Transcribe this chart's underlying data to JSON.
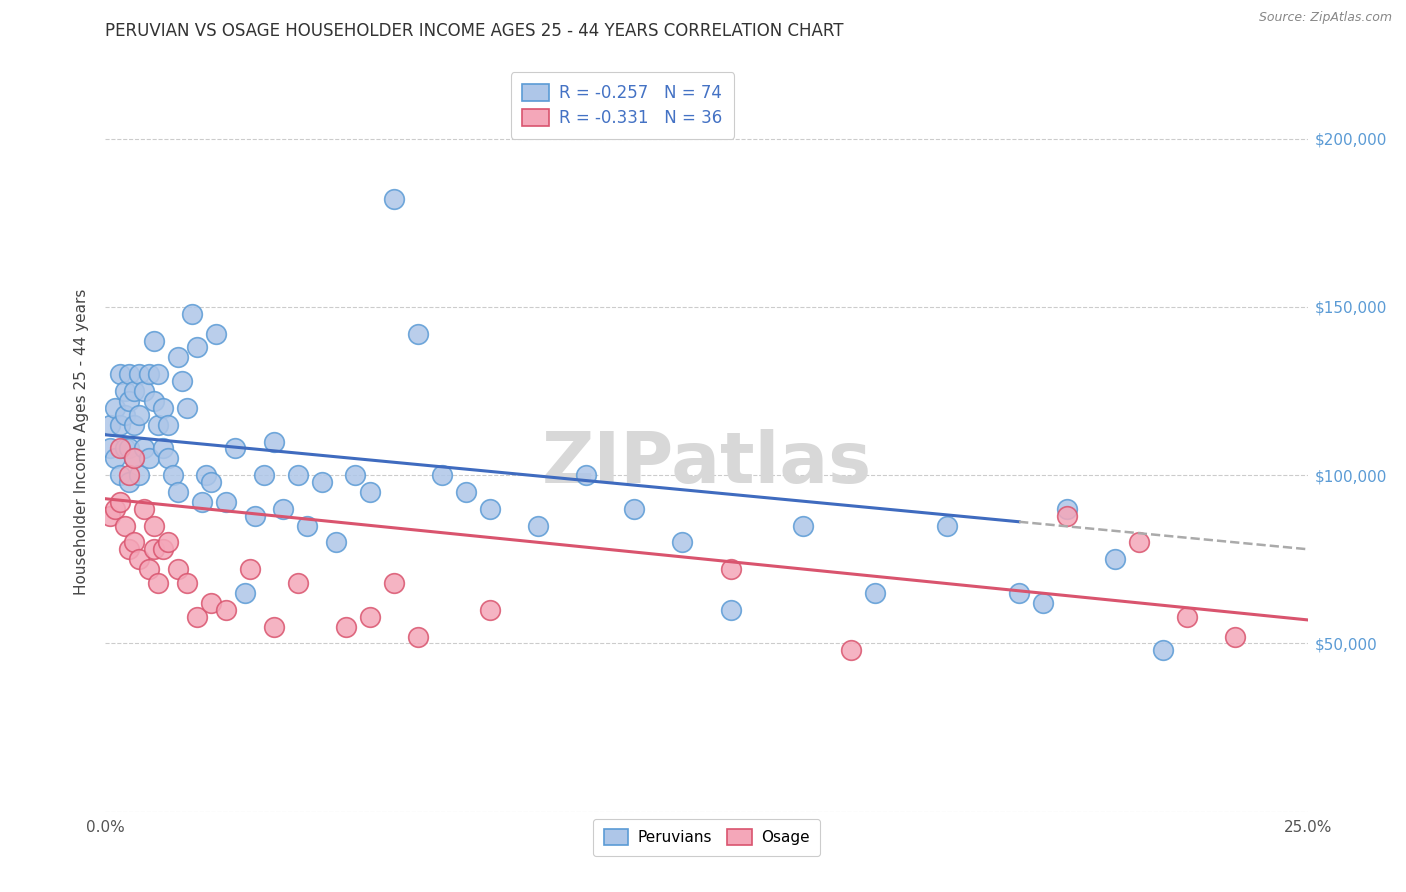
{
  "title": "PERUVIAN VS OSAGE HOUSEHOLDER INCOME AGES 25 - 44 YEARS CORRELATION CHART",
  "source": "Source: ZipAtlas.com",
  "ylabel": "Householder Income Ages 25 - 44 years",
  "xlim": [
    0.0,
    0.25
  ],
  "ylim": [
    0,
    220000
  ],
  "yticks": [
    0,
    50000,
    100000,
    150000,
    200000
  ],
  "xticks": [
    0.0,
    0.05,
    0.1,
    0.15,
    0.2,
    0.25
  ],
  "xtick_labels": [
    "0.0%",
    "",
    "",
    "",
    "",
    "25.0%"
  ],
  "grid_color": "#cccccc",
  "background_color": "#ffffff",
  "peruvian_color": "#aec6e8",
  "peruvian_edge": "#5b9bd5",
  "osage_color": "#f4a7b9",
  "osage_edge": "#d9546e",
  "trend_peruvian_color": "#3f6bbf",
  "trend_osage_color": "#d9546e",
  "trend_dashed_color": "#aaaaaa",
  "R_peruvian": -0.257,
  "N_peruvian": 74,
  "R_osage": -0.331,
  "N_osage": 36,
  "trend_blue_x0": 0.0,
  "trend_blue_y0": 112000,
  "trend_blue_x1": 0.25,
  "trend_blue_y1": 78000,
  "trend_blue_solid_end": 0.19,
  "trend_pink_x0": 0.0,
  "trend_pink_y0": 93000,
  "trend_pink_x1": 0.25,
  "trend_pink_y1": 57000,
  "peruvian_x": [
    0.001,
    0.001,
    0.002,
    0.002,
    0.003,
    0.003,
    0.003,
    0.004,
    0.004,
    0.004,
    0.005,
    0.005,
    0.005,
    0.005,
    0.006,
    0.006,
    0.006,
    0.007,
    0.007,
    0.007,
    0.008,
    0.008,
    0.009,
    0.009,
    0.01,
    0.01,
    0.011,
    0.011,
    0.012,
    0.012,
    0.013,
    0.013,
    0.014,
    0.015,
    0.015,
    0.016,
    0.017,
    0.018,
    0.019,
    0.02,
    0.021,
    0.022,
    0.023,
    0.025,
    0.027,
    0.029,
    0.031,
    0.033,
    0.035,
    0.037,
    0.04,
    0.042,
    0.045,
    0.048,
    0.052,
    0.055,
    0.06,
    0.065,
    0.07,
    0.075,
    0.08,
    0.09,
    0.1,
    0.11,
    0.12,
    0.13,
    0.145,
    0.16,
    0.175,
    0.19,
    0.195,
    0.2,
    0.21,
    0.22
  ],
  "peruvian_y": [
    115000,
    108000,
    120000,
    105000,
    130000,
    115000,
    100000,
    125000,
    118000,
    108000,
    130000,
    122000,
    108000,
    98000,
    125000,
    115000,
    105000,
    130000,
    118000,
    100000,
    125000,
    108000,
    130000,
    105000,
    140000,
    122000,
    130000,
    115000,
    120000,
    108000,
    115000,
    105000,
    100000,
    135000,
    95000,
    128000,
    120000,
    148000,
    138000,
    92000,
    100000,
    98000,
    142000,
    92000,
    108000,
    65000,
    88000,
    100000,
    110000,
    90000,
    100000,
    85000,
    98000,
    80000,
    100000,
    95000,
    182000,
    142000,
    100000,
    95000,
    90000,
    85000,
    100000,
    90000,
    80000,
    60000,
    85000,
    65000,
    85000,
    65000,
    62000,
    90000,
    75000,
    48000
  ],
  "osage_x": [
    0.001,
    0.002,
    0.003,
    0.003,
    0.004,
    0.005,
    0.005,
    0.006,
    0.006,
    0.007,
    0.008,
    0.009,
    0.01,
    0.01,
    0.011,
    0.012,
    0.013,
    0.015,
    0.017,
    0.019,
    0.022,
    0.025,
    0.03,
    0.035,
    0.04,
    0.05,
    0.055,
    0.06,
    0.065,
    0.08,
    0.13,
    0.155,
    0.2,
    0.215,
    0.225,
    0.235
  ],
  "osage_y": [
    88000,
    90000,
    108000,
    92000,
    85000,
    100000,
    78000,
    80000,
    105000,
    75000,
    90000,
    72000,
    85000,
    78000,
    68000,
    78000,
    80000,
    72000,
    68000,
    58000,
    62000,
    60000,
    72000,
    55000,
    68000,
    55000,
    58000,
    68000,
    52000,
    60000,
    72000,
    48000,
    88000,
    80000,
    58000,
    52000
  ],
  "watermark": "ZIPatlas",
  "watermark_color": "#d8d8d8"
}
